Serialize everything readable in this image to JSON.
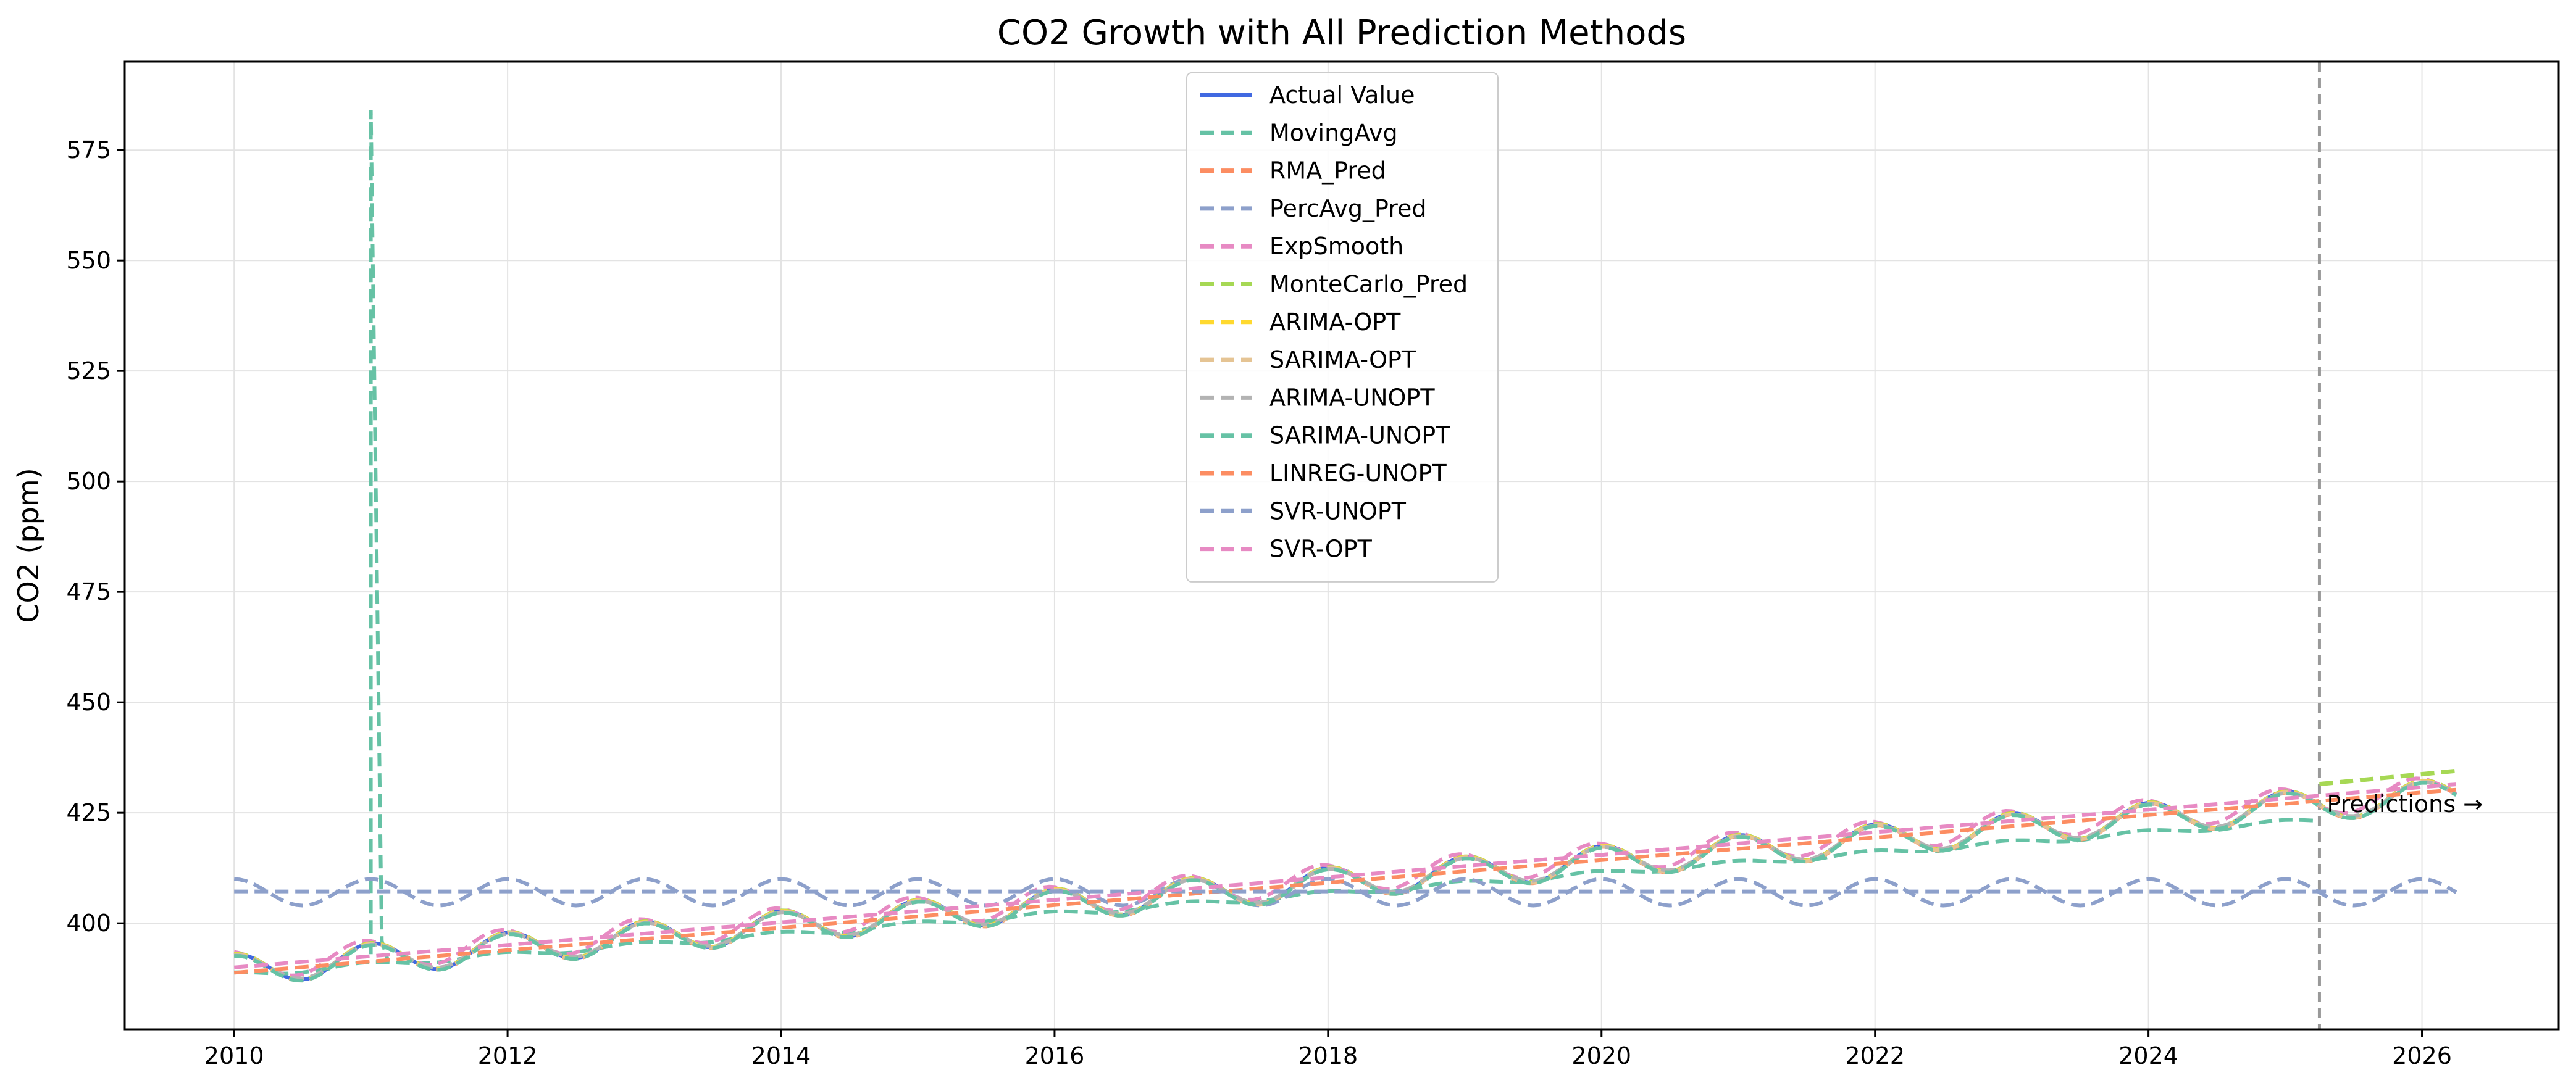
{
  "chart_data": {
    "type": "line",
    "title": "CO2 Growth with All Prediction Methods",
    "xlabel": "",
    "ylabel": "CO2 (ppm)",
    "xlim": [
      2009.2,
      2027.0
    ],
    "ylim": [
      376,
      595
    ],
    "xticks": [
      2010,
      2012,
      2014,
      2016,
      2018,
      2020,
      2022,
      2024,
      2026
    ],
    "yticks": [
      400,
      425,
      450,
      475,
      500,
      525,
      550,
      575
    ],
    "grid": true,
    "legend_position": "top-center",
    "prediction_start": 2025.25,
    "annotation": "Predictions →",
    "colors": {
      "Actual Value": "#4169e1",
      "MovingAvg": "#66c2a5",
      "RMA_Pred": "#fc8d62",
      "PercAvg_Pred": "#8da0cb",
      "ExpSmooth": "#e78ac3",
      "MonteCarlo_Pred": "#a6d854",
      "ARIMA-OPT": "#ffd92f",
      "SARIMA-OPT": "#e5c494",
      "ARIMA-UNOPT": "#b3b3b3",
      "SARIMA-UNOPT": "#66c2a5",
      "LINREG-UNOPT": "#fc8d62",
      "SVR-UNOPT": "#8da0cb",
      "SVR-OPT": "#e78ac3",
      "prediction_line": "#999999"
    },
    "series": [
      {
        "name": "Actual Value",
        "style": "solid",
        "x_start": 2010.0,
        "x_end": 2025.25,
        "model": {
          "base": 389.5,
          "slope": 2.45,
          "amp": 3.5,
          "phase": 0.25
        }
      },
      {
        "name": "MovingAvg",
        "style": "dashed",
        "x_start": 2010.0,
        "x_end": 2025.25,
        "model": {
          "base": 388.3,
          "slope": 2.3,
          "amp": 0.6,
          "phase": 0.3
        },
        "spike": {
          "x": [
            2011.0,
            2011.0,
            2011.08,
            2011.12
          ],
          "y": [
            393,
            584,
            396,
            392
          ]
        }
      },
      {
        "name": "RMA_Pred",
        "style": "dashed",
        "x_start": 2010.0,
        "x_end": 2026.25,
        "model": {
          "base": 389.3,
          "slope": 2.45,
          "amp": 3.5,
          "phase": 0.25
        }
      },
      {
        "name": "PercAvg_Pred",
        "style": "dashed",
        "x_start": 2010.0,
        "x_end": 2026.25,
        "model": {
          "base": 407.0,
          "slope": 0.0,
          "amp": 3.0,
          "phase": 0.25
        }
      },
      {
        "name": "ExpSmooth",
        "style": "dashed",
        "x_start": 2010.0,
        "x_end": 2026.25,
        "model": {
          "base": 390.4,
          "slope": 2.45,
          "amp": 3.3,
          "phase": 0.3
        }
      },
      {
        "name": "MonteCarlo_Pred",
        "style": "dashed",
        "x_start": 2010.0,
        "x_end": 2026.25,
        "model": {
          "base": 389.6,
          "slope": 2.45,
          "amp": 3.5,
          "phase": 0.25
        },
        "forecast": {
          "x": [
            2025.25,
            2026.25
          ],
          "y": [
            431.5,
            434.5
          ]
        }
      },
      {
        "name": "ARIMA-OPT",
        "style": "dashed",
        "x_start": 2010.0,
        "x_end": 2026.25,
        "model": {
          "base": 389.5,
          "slope": 2.45,
          "amp": 3.5,
          "phase": 0.25
        }
      },
      {
        "name": "SARIMA-OPT",
        "style": "dashed",
        "x_start": 2010.0,
        "x_end": 2026.25,
        "model": {
          "base": 389.4,
          "slope": 2.45,
          "amp": 3.5,
          "phase": 0.25
        }
      },
      {
        "name": "ARIMA-UNOPT",
        "style": "dashed",
        "x_start": 2010.0,
        "x_end": 2026.25,
        "model": {
          "base": 389.5,
          "slope": 2.45,
          "amp": 3.2,
          "phase": 0.25
        }
      },
      {
        "name": "SARIMA-UNOPT",
        "style": "dashed",
        "x_start": 2010.0,
        "x_end": 2026.25,
        "model": {
          "base": 389.2,
          "slope": 2.45,
          "amp": 3.4,
          "phase": 0.25
        }
      },
      {
        "name": "LINREG-UNOPT",
        "style": "dashed",
        "x_start": 2010.0,
        "x_end": 2026.25,
        "model": {
          "base": 388.8,
          "slope": 2.55,
          "amp": 0.0,
          "phase": 0.0
        }
      },
      {
        "name": "SVR-UNOPT",
        "style": "dashed",
        "x_start": 2010.0,
        "x_end": 2026.25,
        "model": {
          "base": 407.2,
          "slope": 0.0,
          "amp": 0.0,
          "phase": 0.0
        }
      },
      {
        "name": "SVR-OPT",
        "style": "dashed",
        "x_start": 2010.0,
        "x_end": 2026.25,
        "model": {
          "base": 390.0,
          "slope": 2.55,
          "amp": 0.0,
          "phase": 0.0
        }
      }
    ]
  }
}
